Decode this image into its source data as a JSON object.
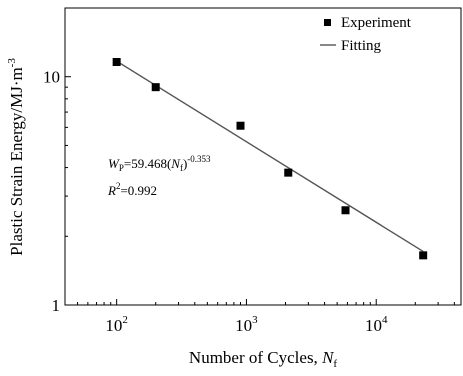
{
  "chart_data": {
    "type": "scatter",
    "xlabel": "Number of Cycles, ",
    "xlabel_sub": "N",
    "xlabel_subscript": "f",
    "ylabel": "Plastic Strain Energy/MJ·m",
    "ylabel_sup": "-3",
    "x_scale": "log",
    "y_scale": "log",
    "xlim": [
      40,
      45000
    ],
    "ylim": [
      1,
      20
    ],
    "x_ticks": [
      {
        "value": 100,
        "base": "10",
        "exp": "2"
      },
      {
        "value": 1000,
        "base": "10",
        "exp": "3"
      },
      {
        "value": 10000,
        "base": "10",
        "exp": "4"
      }
    ],
    "y_ticks": [
      {
        "value": 1,
        "label": "1"
      },
      {
        "value": 10,
        "label": "10"
      }
    ],
    "grid": false,
    "legend_position": "top-right",
    "series": [
      {
        "name": "Experiment",
        "kind": "scatter",
        "marker": "square",
        "x": [
          100,
          200,
          900,
          2100,
          5800,
          23000
        ],
        "y": [
          11.6,
          9.0,
          6.1,
          3.8,
          2.6,
          1.65
        ]
      },
      {
        "name": "Fitting",
        "kind": "line",
        "equation": {
          "coefficient": 59.468,
          "exponent": -0.353
        },
        "x_range": [
          100,
          23000
        ]
      }
    ],
    "annotation": {
      "eq_w": "W",
      "eq_w_sub": "P",
      "eq_mid": "=59.468(",
      "eq_n": "N",
      "eq_n_sub": "f",
      "eq_close": ")",
      "eq_exp": "-0.353",
      "r2_r": "R",
      "r2_sup": "2",
      "r2_val": "=0.992"
    },
    "colors": {
      "marker": "#000000",
      "fit_line": "#555555",
      "axis": "#000000"
    }
  }
}
